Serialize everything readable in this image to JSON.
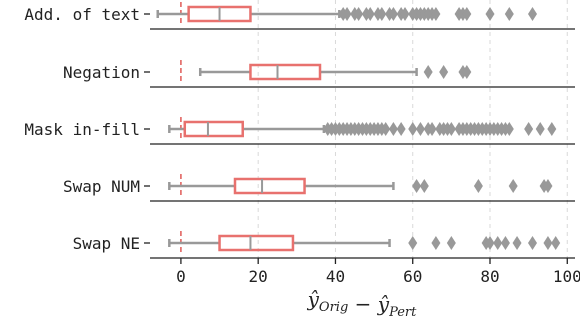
{
  "chart_data": {
    "type": "box",
    "orientation": "horizontal",
    "xlabel": "ŷ_Orig − ŷ_Pert",
    "xlim": [
      -8,
      102
    ],
    "xticks": [
      0,
      20,
      40,
      60,
      80,
      100
    ],
    "grid": "x-dashed",
    "reference_line": {
      "x": 0,
      "style": "dashed",
      "color": "#e05a57"
    },
    "colors": {
      "box": "#e8716e",
      "whisker": "#999999",
      "outlier": "#999999",
      "median": "#999999",
      "axis": "#222222"
    },
    "categories": [
      "Add. of text",
      "Negation",
      "Mask in-fill",
      "Swap NUM",
      "Swap NE"
    ],
    "series": [
      {
        "label": "Add. of text",
        "whisker_low": -6,
        "q1": 2,
        "median": 10,
        "q3": 18,
        "whisker_high": 41,
        "outliers": [
          42,
          43,
          45,
          46,
          48,
          49,
          51,
          52,
          54,
          55,
          57,
          58,
          60,
          61,
          62,
          63,
          64,
          65,
          66,
          72,
          73,
          74,
          80,
          85,
          91
        ]
      },
      {
        "label": "Negation",
        "whisker_low": 5,
        "q1": 18,
        "median": 25,
        "q3": 36,
        "whisker_high": 61,
        "outliers": [
          64,
          68,
          73,
          74
        ]
      },
      {
        "label": "Mask in-fill",
        "whisker_low": -3,
        "q1": 1,
        "median": 7,
        "q3": 16,
        "whisker_high": 37,
        "outliers": [
          38,
          39,
          40,
          41,
          42,
          43,
          44,
          45,
          46,
          47,
          48,
          49,
          50,
          51,
          52,
          53,
          55,
          57,
          60,
          62,
          64,
          65,
          67,
          68,
          69,
          70,
          72,
          73,
          74,
          75,
          76,
          77,
          78,
          79,
          80,
          81,
          82,
          83,
          84,
          85,
          90,
          93,
          96
        ]
      },
      {
        "label": "Swap NUM",
        "whisker_low": -3,
        "q1": 14,
        "median": 21,
        "q3": 32,
        "whisker_high": 55,
        "outliers": [
          61,
          63,
          77,
          86,
          94,
          95
        ]
      },
      {
        "label": "Swap NE",
        "whisker_low": -3,
        "q1": 10,
        "median": 18,
        "q3": 29,
        "whisker_high": 54,
        "outliers": [
          60,
          66,
          70,
          79,
          80,
          82,
          84,
          87,
          91,
          95,
          97
        ]
      }
    ]
  }
}
